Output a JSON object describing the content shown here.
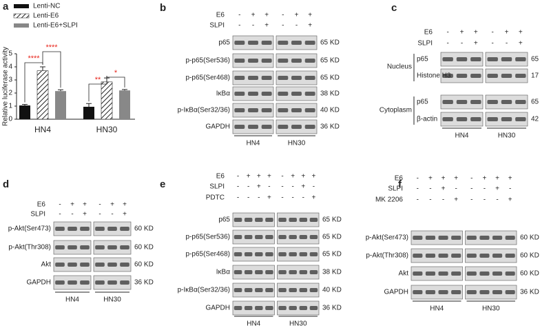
{
  "chart_data": {
    "type": "bar",
    "label": "a",
    "ylabel": "Relative luciferase activity",
    "categories": [
      "HN4",
      "HN30"
    ],
    "series": [
      {
        "name": "Lenti-NC",
        "color": "#111111",
        "values": [
          1.05,
          0.95
        ],
        "errors": [
          0.08,
          0.25
        ]
      },
      {
        "name": "Lenti-E6",
        "color": "hatch",
        "values": [
          3.7,
          2.85
        ],
        "errors": [
          0.3,
          0.3
        ]
      },
      {
        "name": "Lenti-E6+SLPI",
        "color": "#888888",
        "values": [
          2.15,
          2.2
        ],
        "errors": [
          0.1,
          0.07
        ]
      }
    ],
    "ylim": [
      0,
      5
    ],
    "yticks": [
      0,
      1,
      2,
      3,
      4,
      5
    ],
    "annotations": [
      {
        "text": "****"
      },
      {
        "text": "****"
      },
      {
        "text": "**"
      },
      {
        "text": "*"
      }
    ],
    "annotation_color": "#e8251c"
  },
  "blots": [
    {
      "letter": "b",
      "conditions": [
        {
          "label": "E6",
          "signs": [
            "-",
            "+",
            "+",
            "-",
            "+",
            "+"
          ]
        },
        {
          "label": "SLPI",
          "signs": [
            "-",
            "-",
            "+",
            "-",
            "-",
            "+"
          ]
        }
      ],
      "rows": [
        {
          "label": "p65",
          "size": "65 KD"
        },
        {
          "label": "p-p65(Ser536)",
          "size": "65 KD"
        },
        {
          "label": "p-p65(Ser468)",
          "size": "65 KD"
        },
        {
          "label": "IκBα",
          "size": "38 KD"
        },
        {
          "label": "p-IκBα(Ser32/36)",
          "size": "40 KD"
        },
        {
          "label": "GAPDH",
          "size": "36 KD"
        }
      ],
      "groups": [
        "HN4",
        "HN30"
      ]
    },
    {
      "letter": "c",
      "conditions": [
        {
          "label": "E6",
          "signs": [
            "-",
            "+",
            "+",
            "-",
            "+",
            "+"
          ]
        },
        {
          "label": "SLPI",
          "signs": [
            "-",
            "-",
            "+",
            "-",
            "-",
            "+"
          ]
        }
      ],
      "sections": [
        "Nucleus",
        "Cytoplasm"
      ],
      "rows": [
        {
          "label": "p65",
          "size": "65 KD"
        },
        {
          "label": "Histone H3",
          "size": "17 KD"
        },
        {
          "label": "p65",
          "size": "65 KD"
        },
        {
          "label": "β-actin",
          "size": "42 KD"
        }
      ],
      "groups": [
        "HN4",
        "HN30"
      ]
    },
    {
      "letter": "d",
      "conditions": [
        {
          "label": "E6",
          "signs": [
            "-",
            "+",
            "+",
            "-",
            "+",
            "+"
          ]
        },
        {
          "label": "SLPI",
          "signs": [
            "-",
            "-",
            "+",
            "-",
            "-",
            "+"
          ]
        }
      ],
      "rows": [
        {
          "label": "p-Akt(Ser473)",
          "size": "60 KD"
        },
        {
          "label": "p-Akt(Thr308)",
          "size": "60 KD"
        },
        {
          "label": "Akt",
          "size": "60 KD"
        },
        {
          "label": "GAPDH",
          "size": "36 KD"
        }
      ],
      "groups": [
        "HN4",
        "HN30"
      ]
    },
    {
      "letter": "e",
      "conditions": [
        {
          "label": "E6",
          "signs": [
            "-",
            "+",
            "+",
            "+",
            "-",
            "+",
            "+",
            "+"
          ]
        },
        {
          "label": "SLPI",
          "signs": [
            "-",
            "-",
            "+",
            "-",
            "-",
            "-",
            "+",
            "-"
          ]
        },
        {
          "label": "PDTC",
          "signs": [
            "-",
            "-",
            "-",
            "+",
            "-",
            "-",
            "-",
            "+"
          ]
        }
      ],
      "rows": [
        {
          "label": "p65",
          "size": "65 KD"
        },
        {
          "label": "p-p65(Ser536)",
          "size": "65 KD"
        },
        {
          "label": "p-p65(Ser468)",
          "size": "65 KD"
        },
        {
          "label": "IκBα",
          "size": "38 KD"
        },
        {
          "label": "p-IκBα(Ser32/36)",
          "size": "40 KD"
        },
        {
          "label": "GAPDH",
          "size": "36 KD"
        }
      ],
      "groups": [
        "HN4",
        "HN30"
      ]
    },
    {
      "letter": "f",
      "conditions": [
        {
          "label": "E6",
          "signs": [
            "-",
            "+",
            "+",
            "+",
            "-",
            "+",
            "+",
            "+"
          ]
        },
        {
          "label": "SLPI",
          "signs": [
            "-",
            "-",
            "+",
            "-",
            "-",
            "-",
            "+",
            "-"
          ]
        },
        {
          "label": "MK 2206",
          "signs": [
            "-",
            "-",
            "-",
            "+",
            "-",
            "-",
            "-",
            "+"
          ]
        }
      ],
      "rows": [
        {
          "label": "p-Akt(Ser473)",
          "size": "60 KD"
        },
        {
          "label": "p-Akt(Thr308)",
          "size": "60 KD"
        },
        {
          "label": "Akt",
          "size": "60 KD"
        },
        {
          "label": "GAPDH",
          "size": "36 KD"
        }
      ],
      "groups": [
        "HN4",
        "HN30"
      ]
    }
  ]
}
